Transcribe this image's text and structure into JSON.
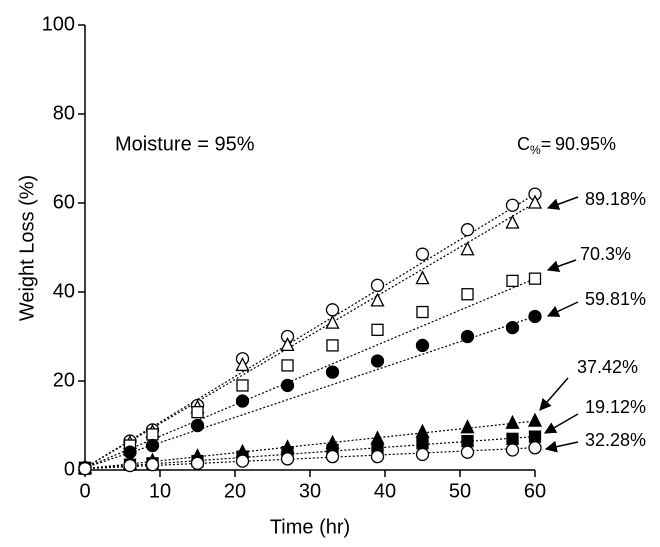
{
  "chart_data": {
    "type": "scatter",
    "xlabel": "Time (hr)",
    "ylabel": "Weight Loss (%)",
    "annotation": "Moisture = 95%",
    "series_label": {
      "symbol": "C",
      "subscript": "%",
      "sign": "="
    },
    "xlim": [
      0,
      60
    ],
    "xticks": [
      0,
      10,
      20,
      30,
      40,
      50,
      60
    ],
    "ylim": [
      0,
      100
    ],
    "yticks": [
      0,
      20,
      40,
      60,
      80,
      100
    ],
    "x": [
      0,
      6,
      9,
      15,
      21,
      27,
      33,
      39,
      45,
      51,
      57,
      60
    ],
    "series": [
      {
        "name": "90.95%",
        "marker": "circle",
        "filled": false,
        "values": [
          0.5,
          6.5,
          9,
          14.5,
          25,
          30,
          36,
          41.5,
          48.5,
          54,
          59.5,
          62
        ]
      },
      {
        "name": "89.18%",
        "marker": "triangle",
        "filled": false,
        "values": [
          0.5,
          6,
          8.5,
          14,
          23.5,
          28,
          33,
          38,
          43,
          49.5,
          55.5,
          60
        ]
      },
      {
        "name": "70.3%",
        "marker": "square",
        "filled": false,
        "values": [
          0.5,
          5.5,
          8,
          13,
          19,
          23.5,
          28,
          31.5,
          35.5,
          39.5,
          42.5,
          43
        ]
      },
      {
        "name": "59.81%",
        "marker": "circle",
        "filled": true,
        "values": [
          0.5,
          4,
          5.5,
          10,
          15.5,
          19,
          22,
          24.5,
          28,
          30,
          32,
          34.5
        ]
      },
      {
        "name": "37.42%",
        "marker": "triangle",
        "filled": true,
        "values": [
          0.3,
          1.5,
          2,
          3,
          4,
          5,
          6,
          7,
          8.5,
          9.5,
          10.5,
          11
        ]
      },
      {
        "name": "19.12%",
        "marker": "square",
        "filled": true,
        "values": [
          0.3,
          1.2,
          1.5,
          2,
          3,
          4,
          4.5,
          5,
          6,
          6.5,
          7,
          7.5
        ]
      },
      {
        "name": "32.28%",
        "marker": "circle",
        "filled": false,
        "values": [
          0.3,
          1,
          1.2,
          1.5,
          2,
          2.5,
          3,
          3,
          3.5,
          4,
          4.5,
          5
        ]
      }
    ]
  }
}
